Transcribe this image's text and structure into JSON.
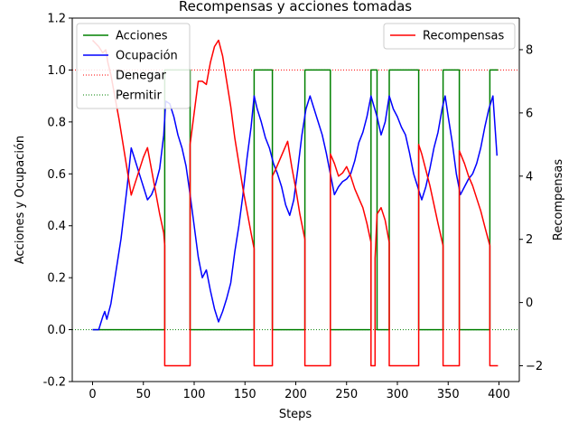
{
  "chart_data": {
    "type": "line",
    "title": "Recompensas y acciones tomadas",
    "xlabel": "Steps",
    "ylabel_left": "Acciones y Ocupación",
    "ylabel_right": "Recompensas",
    "xlim": [
      -20,
      420
    ],
    "ylim_left": [
      -0.2,
      1.2
    ],
    "ylim_right": [
      -2.5,
      9.0
    ],
    "x_ticks": [
      0,
      50,
      100,
      150,
      200,
      250,
      300,
      350,
      400
    ],
    "y_ticks_left": [
      -0.2,
      0.0,
      0.2,
      0.4,
      0.6,
      0.8,
      1.0,
      1.2
    ],
    "y_ticks_right": [
      -2,
      0,
      2,
      4,
      6,
      8
    ],
    "grid": false,
    "legends": [
      {
        "placement": "upper-left",
        "entries": [
          {
            "label": "Acciones",
            "color": "#008000",
            "style": "solid"
          },
          {
            "label": "Ocupación",
            "color": "#0000ff",
            "style": "solid"
          },
          {
            "label": "Denegar",
            "color": "#ff0000",
            "style": "dotted"
          },
          {
            "label": "Permitir",
            "color": "#008000",
            "style": "dotted"
          }
        ]
      },
      {
        "placement": "upper-right",
        "entries": [
          {
            "label": "Recompensas",
            "color": "#ff0000",
            "style": "solid"
          }
        ]
      }
    ],
    "reference_lines": [
      {
        "name": "Denegar",
        "y": 1.0,
        "color": "#ff0000",
        "style": "dotted"
      },
      {
        "name": "Permitir",
        "y": 0.0,
        "color": "#008000",
        "style": "dotted"
      }
    ],
    "series": [
      {
        "name": "Acciones",
        "axis": "left",
        "color": "#008000",
        "step": true,
        "x": [
          0,
          71,
          71,
          96,
          96,
          159,
          159,
          177,
          177,
          209,
          209,
          234,
          234,
          274,
          274,
          280,
          280,
          292,
          292,
          321,
          321,
          345,
          345,
          361,
          361,
          391,
          391,
          399
        ],
        "values": [
          0,
          0,
          1,
          1,
          0,
          0,
          1,
          1,
          0,
          0,
          1,
          1,
          0,
          0,
          1,
          1,
          0,
          0,
          1,
          1,
          0,
          0,
          1,
          1,
          0,
          0,
          1,
          1
        ]
      },
      {
        "name": "Ocupación",
        "axis": "left",
        "color": "#0000ff",
        "x": [
          0,
          6,
          10,
          12,
          14,
          18,
          22,
          28,
          34,
          38,
          42,
          46,
          50,
          54,
          58,
          62,
          66,
          70,
          72,
          76,
          80,
          84,
          88,
          92,
          96,
          100,
          104,
          108,
          112,
          116,
          120,
          124,
          128,
          132,
          136,
          140,
          144,
          148,
          152,
          156,
          159,
          162,
          166,
          170,
          174,
          178,
          182,
          186,
          190,
          194,
          198,
          202,
          206,
          210,
          214,
          218,
          222,
          226,
          230,
          234,
          238,
          242,
          246,
          250,
          254,
          258,
          262,
          266,
          270,
          274,
          277,
          280,
          284,
          288,
          292,
          296,
          300,
          304,
          308,
          312,
          316,
          320,
          324,
          328,
          332,
          336,
          340,
          344,
          347,
          350,
          354,
          358,
          362,
          366,
          370,
          374,
          378,
          382,
          386,
          390,
          394,
          398
        ],
        "values": [
          0.0,
          0.0,
          0.05,
          0.07,
          0.04,
          0.1,
          0.2,
          0.35,
          0.55,
          0.7,
          0.65,
          0.6,
          0.55,
          0.5,
          0.52,
          0.56,
          0.62,
          0.75,
          0.88,
          0.87,
          0.82,
          0.75,
          0.7,
          0.63,
          0.52,
          0.4,
          0.28,
          0.2,
          0.23,
          0.15,
          0.08,
          0.03,
          0.07,
          0.12,
          0.18,
          0.3,
          0.4,
          0.52,
          0.66,
          0.78,
          0.9,
          0.85,
          0.8,
          0.74,
          0.7,
          0.64,
          0.6,
          0.55,
          0.48,
          0.44,
          0.5,
          0.62,
          0.75,
          0.85,
          0.9,
          0.85,
          0.8,
          0.75,
          0.68,
          0.6,
          0.52,
          0.55,
          0.57,
          0.58,
          0.6,
          0.65,
          0.72,
          0.76,
          0.82,
          0.9,
          0.86,
          0.82,
          0.75,
          0.8,
          0.9,
          0.85,
          0.82,
          0.78,
          0.75,
          0.68,
          0.6,
          0.55,
          0.5,
          0.55,
          0.62,
          0.7,
          0.76,
          0.85,
          0.9,
          0.82,
          0.72,
          0.6,
          0.52,
          0.55,
          0.58,
          0.6,
          0.64,
          0.7,
          0.78,
          0.85,
          0.9,
          0.67
        ]
      },
      {
        "name": "Recompensas",
        "axis": "right",
        "color": "#ff0000",
        "x": [
          0,
          6,
          10,
          13,
          15,
          18,
          22,
          26,
          30,
          34,
          38,
          42,
          46,
          50,
          54,
          58,
          62,
          66,
          70,
          71,
          71,
          96,
          96,
          100,
          104,
          108,
          112,
          116,
          120,
          124,
          128,
          132,
          136,
          140,
          144,
          148,
          152,
          156,
          159,
          159,
          177,
          177,
          180,
          184,
          188,
          192,
          196,
          200,
          204,
          209,
          209,
          234,
          234,
          238,
          242,
          246,
          250,
          254,
          258,
          262,
          266,
          270,
          274,
          274,
          278,
          278,
          280,
          284,
          288,
          292,
          292,
          321,
          321,
          324,
          328,
          332,
          336,
          340,
          345,
          345,
          361,
          361,
          366,
          370,
          374,
          378,
          382,
          386,
          391,
          391,
          399
        ],
        "values": [
          8.3,
          8.1,
          7.9,
          8.0,
          7.6,
          7.2,
          6.5,
          5.8,
          5.0,
          4.2,
          3.4,
          3.8,
          4.2,
          4.6,
          4.9,
          4.2,
          3.5,
          2.8,
          2.2,
          1.8,
          -2.0,
          -2.0,
          5.0,
          6.0,
          7.0,
          7.0,
          6.9,
          7.6,
          8.1,
          8.3,
          7.8,
          7.0,
          6.2,
          5.2,
          4.4,
          3.6,
          2.9,
          2.2,
          1.7,
          -2.0,
          -2.0,
          4.0,
          4.2,
          4.5,
          4.8,
          5.1,
          4.3,
          3.6,
          2.8,
          2.0,
          -2.0,
          -2.0,
          4.7,
          4.4,
          4.0,
          4.1,
          4.3,
          4.0,
          3.6,
          3.3,
          3.0,
          2.5,
          1.9,
          -2.0,
          -2.0,
          1.4,
          2.8,
          3.0,
          2.6,
          1.9,
          -2.0,
          -2.0,
          5.0,
          4.7,
          4.2,
          3.7,
          3.1,
          2.5,
          1.8,
          -2.0,
          -2.0,
          4.8,
          4.4,
          4.0,
          3.7,
          3.3,
          2.9,
          2.4,
          1.8,
          -2.0,
          -2.0
        ]
      }
    ]
  }
}
